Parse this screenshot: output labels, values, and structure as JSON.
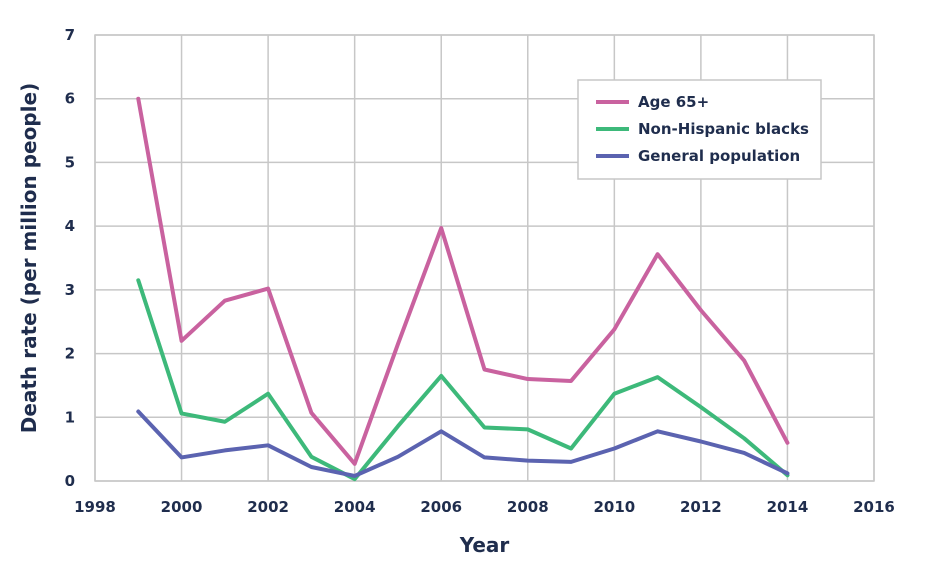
{
  "chart_data": {
    "type": "line",
    "xlabel": "Year",
    "ylabel": "Death rate (per million people)",
    "xlim": [
      1998,
      2016
    ],
    "ylim": [
      0,
      7
    ],
    "xticks": [
      1998,
      2000,
      2002,
      2004,
      2006,
      2008,
      2010,
      2012,
      2014,
      2016
    ],
    "yticks": [
      0,
      1,
      2,
      3,
      4,
      5,
      6,
      7
    ],
    "grid": true,
    "legend_position": "top-right",
    "x": [
      1999,
      2000,
      2001,
      2002,
      2003,
      2004,
      2005,
      2006,
      2007,
      2008,
      2009,
      2010,
      2011,
      2012,
      2013,
      2014
    ],
    "series": [
      {
        "name": "Age 65+",
        "color": "#c9629f",
        "values": [
          6.0,
          2.2,
          2.83,
          3.02,
          1.07,
          0.27,
          2.15,
          3.97,
          1.75,
          1.6,
          1.57,
          2.38,
          3.56,
          2.68,
          1.89,
          0.6
        ]
      },
      {
        "name": "Non-Hispanic blacks",
        "color": "#3db97a",
        "values": [
          3.15,
          1.06,
          0.93,
          1.37,
          0.38,
          0.03,
          0.86,
          1.65,
          0.84,
          0.81,
          0.51,
          1.37,
          1.63,
          1.16,
          0.67,
          0.09
        ]
      },
      {
        "name": "General population",
        "color": "#5b63b0",
        "values": [
          1.09,
          0.37,
          0.48,
          0.56,
          0.22,
          0.08,
          0.38,
          0.78,
          0.37,
          0.32,
          0.3,
          0.51,
          0.78,
          0.62,
          0.44,
          0.12
        ]
      }
    ]
  }
}
